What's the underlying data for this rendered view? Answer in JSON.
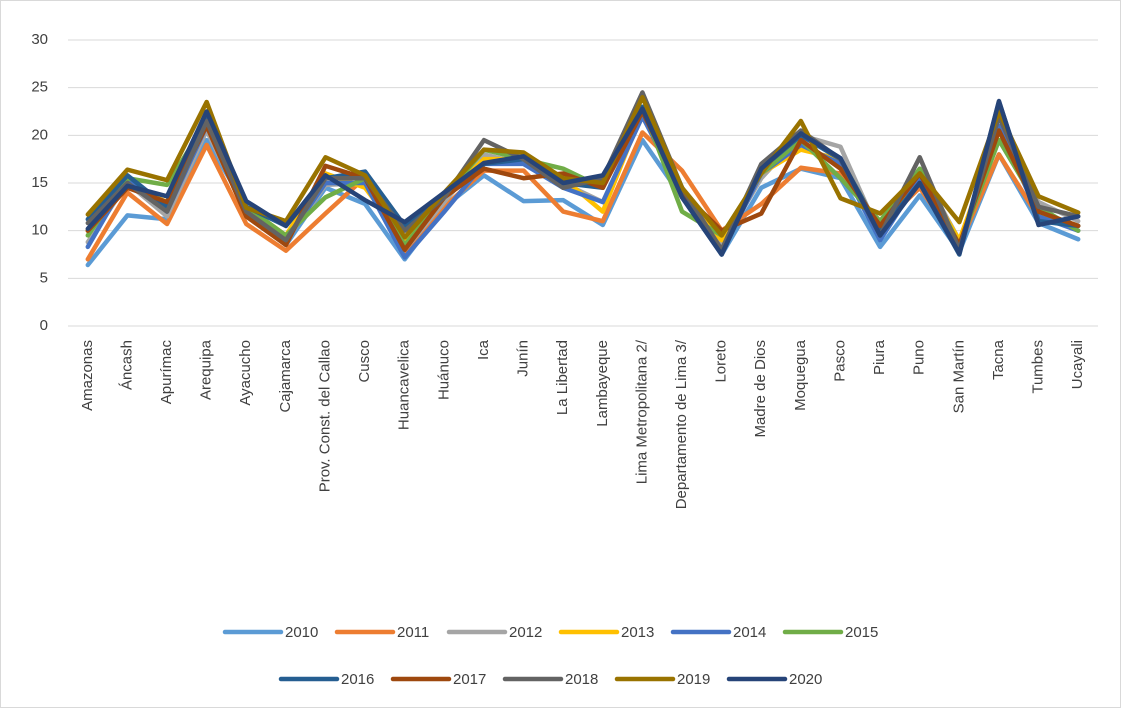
{
  "chart_data": {
    "type": "line",
    "categories": [
      "Amazonas",
      "Áncash",
      "Apurímac",
      "Arequipa",
      "Ayacucho",
      "Cajamarca",
      "Prov. Const. del Callao",
      "Cusco",
      "Huancavelica",
      "Huánuco",
      "Ica",
      "Junín",
      "La Libertad",
      "Lambayeque",
      "Lima Metropolitana 2/",
      "Departamento de Lima 3/",
      "Loreto",
      "Madre de Dios",
      "Moquegua",
      "Pasco",
      "Piura",
      "Puno",
      "San Martín",
      "Tacna",
      "Tumbes",
      "Ucayali"
    ],
    "series": [
      {
        "name": "2010",
        "color": "#5b9bd5",
        "values": [
          6.4,
          11.6,
          11.2,
          19.5,
          12.5,
          8.5,
          14.5,
          12.8,
          7.0,
          12.5,
          15.8,
          13.1,
          13.2,
          10.6,
          19.5,
          13.5,
          7.5,
          14.5,
          16.5,
          15.5,
          8.3,
          13.7,
          7.8,
          18.0,
          10.8,
          9.1
        ]
      },
      {
        "name": "2011",
        "color": "#ed7d31",
        "values": [
          7.0,
          14.0,
          10.7,
          19.0,
          10.7,
          7.9,
          11.8,
          15.6,
          7.5,
          12.5,
          16.3,
          16.3,
          12.0,
          11.0,
          20.3,
          16.3,
          10.0,
          12.8,
          16.6,
          16.0,
          10.5,
          14.5,
          8.5,
          18.0,
          11.4,
          10.5
        ]
      },
      {
        "name": "2012",
        "color": "#a5a5a5",
        "values": [
          8.8,
          15.0,
          11.5,
          20.5,
          12.0,
          9.0,
          14.8,
          15.0,
          8.0,
          13.0,
          18.0,
          17.0,
          15.0,
          13.0,
          22.0,
          14.0,
          8.5,
          15.5,
          20.0,
          18.8,
          9.5,
          16.5,
          9.0,
          19.5,
          13.0,
          11.0
        ]
      },
      {
        "name": "2013",
        "color": "#ffc000",
        "values": [
          10.0,
          14.8,
          13.0,
          22.5,
          12.5,
          9.5,
          16.0,
          14.5,
          9.0,
          13.5,
          17.5,
          17.5,
          15.5,
          12.0,
          22.5,
          13.5,
          9.0,
          16.0,
          18.5,
          17.5,
          10.0,
          16.0,
          9.0,
          20.5,
          12.0,
          10.5
        ]
      },
      {
        "name": "2014",
        "color": "#4472c4",
        "values": [
          8.3,
          15.5,
          12.0,
          21.0,
          12.0,
          9.0,
          15.0,
          15.0,
          7.2,
          12.0,
          17.0,
          17.0,
          14.5,
          13.0,
          22.0,
          14.0,
          7.8,
          16.0,
          19.0,
          17.0,
          9.0,
          15.5,
          8.0,
          21.0,
          11.5,
          10.0
        ]
      },
      {
        "name": "2015",
        "color": "#70ad47",
        "values": [
          9.5,
          15.5,
          14.8,
          21.5,
          12.5,
          9.5,
          13.5,
          15.5,
          8.5,
          13.5,
          18.5,
          17.5,
          16.5,
          14.5,
          23.0,
          12.0,
          9.5,
          16.0,
          19.5,
          15.5,
          11.0,
          16.5,
          8.5,
          19.5,
          12.5,
          10.0
        ]
      },
      {
        "name": "2016",
        "color": "#255e91",
        "values": [
          11.2,
          15.8,
          12.5,
          22.0,
          12.5,
          10.5,
          15.5,
          16.2,
          10.5,
          14.0,
          17.0,
          17.5,
          15.0,
          14.5,
          23.0,
          14.5,
          7.5,
          16.5,
          20.0,
          17.5,
          10.0,
          15.0,
          7.5,
          23.5,
          11.0,
          10.5
        ]
      },
      {
        "name": "2017",
        "color": "#9e480e",
        "values": [
          10.0,
          14.5,
          13.0,
          21.0,
          11.5,
          8.5,
          16.8,
          15.5,
          8.0,
          13.5,
          16.5,
          15.5,
          16.0,
          14.5,
          22.5,
          14.0,
          10.0,
          11.8,
          19.5,
          16.5,
          10.5,
          16.0,
          8.5,
          20.5,
          12.0,
          10.5
        ]
      },
      {
        "name": "2018",
        "color": "#636363",
        "values": [
          10.8,
          15.0,
          12.0,
          21.5,
          12.0,
          9.0,
          15.5,
          15.5,
          10.0,
          13.5,
          19.5,
          17.5,
          14.5,
          15.5,
          24.5,
          14.5,
          8.0,
          17.0,
          20.5,
          17.5,
          9.5,
          17.7,
          8.0,
          22.0,
          12.5,
          11.5
        ]
      },
      {
        "name": "2019",
        "color": "#997300",
        "values": [
          11.7,
          16.4,
          15.3,
          23.5,
          12.4,
          11.0,
          17.7,
          15.8,
          9.3,
          14.0,
          18.5,
          18.2,
          15.5,
          15.0,
          24.0,
          14.5,
          9.5,
          16.0,
          21.5,
          13.4,
          11.8,
          16.0,
          10.9,
          22.5,
          13.6,
          11.9
        ]
      },
      {
        "name": "2020",
        "color": "#264478",
        "values": [
          10.2,
          14.7,
          13.6,
          22.5,
          13.1,
          10.5,
          15.8,
          13.2,
          10.9,
          14.0,
          17.1,
          17.8,
          15.0,
          15.8,
          22.8,
          13.5,
          7.5,
          16.5,
          20.2,
          17.6,
          9.5,
          15.0,
          7.6,
          23.6,
          10.6,
          11.5
        ]
      }
    ],
    "ylim": [
      0,
      30
    ],
    "yticks": [
      0,
      5,
      10,
      15,
      20,
      25,
      30
    ],
    "grid": true
  }
}
